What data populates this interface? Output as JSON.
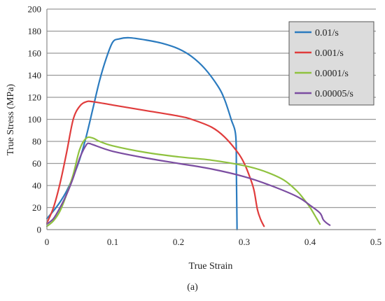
{
  "caption": "(a)",
  "chart_data": {
    "type": "line",
    "title": "",
    "xlabel": "True Strain",
    "ylabel": "True Stress (MPa)",
    "xlim": [
      0,
      0.5
    ],
    "ylim": [
      0,
      200
    ],
    "x_ticks": [
      0,
      0.1,
      0.2,
      0.3,
      0.4,
      0.5
    ],
    "x_tick_labels": [
      "0",
      "0.1",
      "0.2",
      "0.3",
      "0.4",
      "0.5"
    ],
    "y_ticks": [
      0,
      20,
      40,
      60,
      80,
      100,
      120,
      140,
      160,
      180,
      200
    ],
    "y_tick_labels": [
      "0",
      "20",
      "40",
      "60",
      "80",
      "100",
      "120",
      "140",
      "160",
      "180",
      "200"
    ],
    "grid": "horizontal",
    "legend": "top-right",
    "series": [
      {
        "name": "0.01/s",
        "color": "#2b7bbf",
        "points": [
          [
            0,
            10
          ],
          [
            0.01,
            17
          ],
          [
            0.02,
            25
          ],
          [
            0.03,
            35
          ],
          [
            0.04,
            48
          ],
          [
            0.05,
            64
          ],
          [
            0.06,
            85
          ],
          [
            0.07,
            110
          ],
          [
            0.08,
            135
          ],
          [
            0.09,
            155
          ],
          [
            0.1,
            170
          ],
          [
            0.11,
            173
          ],
          [
            0.125,
            174
          ],
          [
            0.15,
            172
          ],
          [
            0.175,
            169
          ],
          [
            0.2,
            164
          ],
          [
            0.22,
            157
          ],
          [
            0.24,
            146
          ],
          [
            0.26,
            130
          ],
          [
            0.27,
            118
          ],
          [
            0.28,
            100
          ],
          [
            0.287,
            85
          ],
          [
            0.288,
            50
          ],
          [
            0.289,
            0
          ]
        ]
      },
      {
        "name": "0.001/s",
        "color": "#e03c3c",
        "points": [
          [
            0,
            6
          ],
          [
            0.01,
            20
          ],
          [
            0.02,
            42
          ],
          [
            0.03,
            70
          ],
          [
            0.04,
            100
          ],
          [
            0.05,
            112
          ],
          [
            0.06,
            116
          ],
          [
            0.07,
            116
          ],
          [
            0.1,
            113
          ],
          [
            0.15,
            108
          ],
          [
            0.2,
            103
          ],
          [
            0.22,
            100
          ],
          [
            0.25,
            93
          ],
          [
            0.27,
            84
          ],
          [
            0.29,
            70
          ],
          [
            0.3,
            60
          ],
          [
            0.31,
            45
          ],
          [
            0.315,
            35
          ],
          [
            0.32,
            18
          ],
          [
            0.325,
            9
          ],
          [
            0.33,
            3
          ]
        ]
      },
      {
        "name": "0.0001/s",
        "color": "#8fc23f",
        "points": [
          [
            0,
            3
          ],
          [
            0.01,
            8
          ],
          [
            0.02,
            17
          ],
          [
            0.03,
            32
          ],
          [
            0.04,
            50
          ],
          [
            0.05,
            73
          ],
          [
            0.06,
            83
          ],
          [
            0.07,
            83
          ],
          [
            0.08,
            80
          ],
          [
            0.1,
            76
          ],
          [
            0.15,
            70
          ],
          [
            0.2,
            66
          ],
          [
            0.25,
            63
          ],
          [
            0.3,
            58
          ],
          [
            0.33,
            53
          ],
          [
            0.36,
            45
          ],
          [
            0.38,
            35
          ],
          [
            0.39,
            28
          ],
          [
            0.4,
            20
          ],
          [
            0.41,
            10
          ],
          [
            0.415,
            5
          ]
        ]
      },
      {
        "name": "0.00005/s",
        "color": "#7b4da1",
        "points": [
          [
            0,
            5
          ],
          [
            0.01,
            10
          ],
          [
            0.02,
            20
          ],
          [
            0.03,
            32
          ],
          [
            0.04,
            47
          ],
          [
            0.05,
            65
          ],
          [
            0.06,
            77
          ],
          [
            0.065,
            78
          ],
          [
            0.07,
            77
          ],
          [
            0.1,
            71
          ],
          [
            0.15,
            65
          ],
          [
            0.2,
            60
          ],
          [
            0.25,
            55
          ],
          [
            0.3,
            48
          ],
          [
            0.34,
            40
          ],
          [
            0.38,
            30
          ],
          [
            0.4,
            22
          ],
          [
            0.415,
            15
          ],
          [
            0.42,
            9
          ],
          [
            0.425,
            6
          ],
          [
            0.43,
            4
          ]
        ]
      }
    ]
  }
}
